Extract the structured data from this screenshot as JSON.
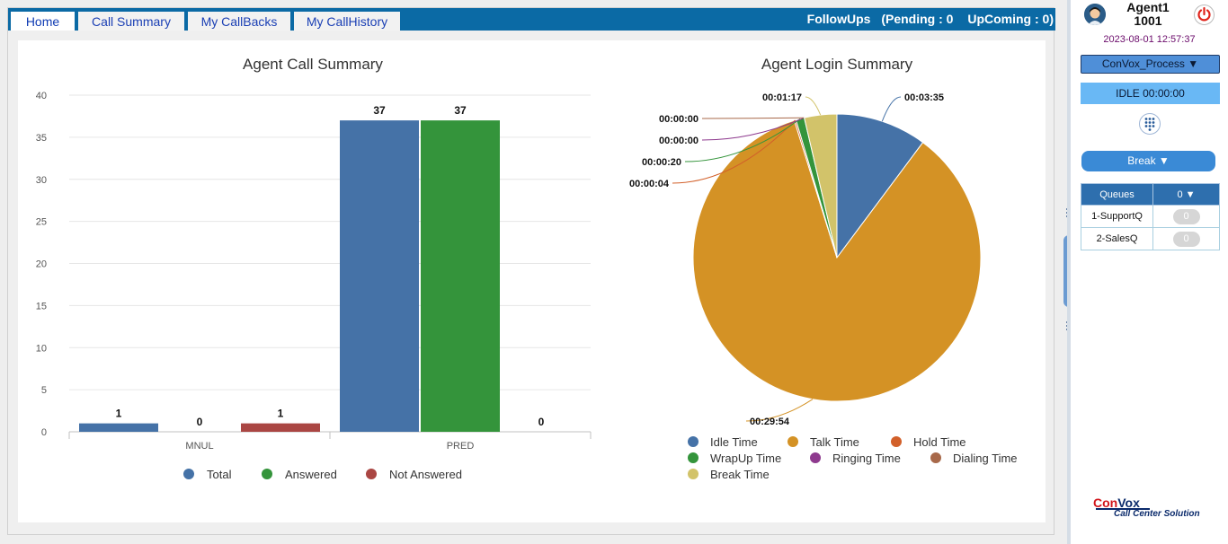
{
  "tabs": [
    {
      "label": "Home",
      "active": true
    },
    {
      "label": "Call Summary",
      "active": false
    },
    {
      "label": "My CallBacks",
      "active": false
    },
    {
      "label": "My CallHistory",
      "active": false
    }
  ],
  "followups": {
    "label": "FollowUps",
    "pending": "(Pending : 0",
    "upcoming": "UpComing : 0)"
  },
  "chart_data": [
    {
      "type": "bar",
      "title": "Agent Call Summary",
      "categories": [
        "MNUL",
        "PRED"
      ],
      "series": [
        {
          "name": "Total",
          "color": "#4572a7",
          "values": [
            1,
            37
          ]
        },
        {
          "name": "Answered",
          "color": "#34943b",
          "values": [
            0,
            37
          ]
        },
        {
          "name": "Not Answered",
          "color": "#aa4643",
          "values": [
            1,
            0
          ]
        }
      ],
      "ylim": [
        0,
        40
      ],
      "yticks": [
        0,
        5,
        10,
        15,
        20,
        25,
        30,
        35,
        40
      ],
      "grid": true,
      "legend": "bottom"
    },
    {
      "type": "pie",
      "title": "Agent Login Summary",
      "slices": [
        {
          "name": "Idle Time",
          "label": "00:03:35",
          "value": 215,
          "color": "#4572a7"
        },
        {
          "name": "Talk Time",
          "label": "00:29:54",
          "value": 1794,
          "color": "#d49225"
        },
        {
          "name": "Hold Time",
          "label": "00:00:04",
          "value": 4,
          "color": "#d2602a"
        },
        {
          "name": "WrapUp Time",
          "label": "00:00:20",
          "value": 20,
          "color": "#34943b"
        },
        {
          "name": "Ringing Time",
          "label": "00:00:00",
          "value": 0,
          "color": "#8e3a8e"
        },
        {
          "name": "Dialing Time",
          "label": "00:00:00",
          "value": 0,
          "color": "#a8694a"
        },
        {
          "name": "Break Time",
          "label": "00:01:17",
          "value": 77,
          "color": "#d2c36a"
        }
      ],
      "legend": "bottom"
    }
  ],
  "agent": {
    "name": "Agent1",
    "id": "1001",
    "datetime": "2023-08-01 12:57:37"
  },
  "process": {
    "label": "ConVox_Process ▼"
  },
  "status": {
    "label": "IDLE 00:00:00"
  },
  "break_button": {
    "label": "Break ▼"
  },
  "queues": {
    "header": "Queues",
    "total": "0 ▼",
    "rows": [
      {
        "name": "1-SupportQ",
        "count": "0"
      },
      {
        "name": "2-SalesQ",
        "count": "0"
      }
    ]
  },
  "logo": {
    "brand": "ConVox",
    "tagline": "Call Center Solution"
  },
  "icons": {
    "avatar": "agent-avatar-icon",
    "power": "power-icon",
    "dialpad": "dialpad-icon"
  }
}
